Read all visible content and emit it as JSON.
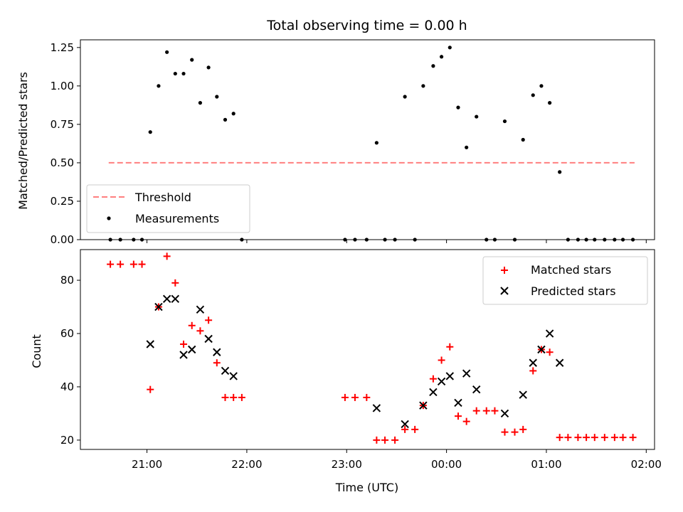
{
  "chart_data": [
    {
      "type": "scatter",
      "title": "Total observing time = 0.00 h",
      "xlabel": "",
      "ylabel": "Matched/Predicted stars",
      "xlim": [
        "20:20",
        "02:05"
      ],
      "ylim": [
        0,
        1.3
      ],
      "yticks": [
        "0.00",
        "0.25",
        "0.50",
        "0.75",
        "1.00",
        "1.25"
      ],
      "legend_position": "lower-left",
      "threshold": {
        "name": "Threshold",
        "value": 0.5,
        "x": [
          "20:37",
          "01:53"
        ],
        "color": "#ff7f7f",
        "style": "dashed"
      },
      "series": [
        {
          "name": "Measurements",
          "color": "#000000",
          "marker": "dot",
          "x": [
            "20:38",
            "20:44",
            "20:52",
            "20:57",
            "21:02",
            "21:07",
            "21:12",
            "21:17",
            "21:22",
            "21:27",
            "21:32",
            "21:37",
            "21:42",
            "21:47",
            "21:52",
            "21:57",
            "22:59",
            "23:05",
            "23:12",
            "23:18",
            "23:23",
            "23:29",
            "23:35",
            "23:41",
            "23:46",
            "23:52",
            "23:57",
            "00:02",
            "00:07",
            "00:12",
            "00:18",
            "00:24",
            "00:29",
            "00:35",
            "00:41",
            "00:46",
            "00:52",
            "00:57",
            "01:02",
            "01:08",
            "01:13",
            "01:19",
            "01:24",
            "01:29",
            "01:35",
            "01:41",
            "01:46",
            "01:52"
          ],
          "y": [
            0,
            0,
            0,
            0,
            0.7,
            1.0,
            1.22,
            1.08,
            1.08,
            1.17,
            0.89,
            1.12,
            0.93,
            0.78,
            0.82,
            0,
            0,
            0,
            0,
            0.63,
            0,
            0,
            0.93,
            0,
            1.0,
            1.13,
            1.19,
            1.25,
            0.86,
            0.6,
            0.8,
            0,
            0,
            0.77,
            0,
            0.65,
            0.94,
            1.0,
            0.89,
            0.44,
            0,
            0,
            0,
            0,
            0,
            0,
            0,
            0
          ]
        }
      ]
    },
    {
      "type": "scatter",
      "title": "",
      "xlabel": "Time (UTC)",
      "ylabel": "Count",
      "xlim": [
        "20:20",
        "02:05"
      ],
      "ylim": [
        16.5,
        91.5
      ],
      "yticks": [
        "20",
        "40",
        "60",
        "80"
      ],
      "xticks": [
        "21:00",
        "22:00",
        "23:00",
        "00:00",
        "01:00",
        "02:00"
      ],
      "legend_position": "upper-right",
      "series": [
        {
          "name": "Matched stars",
          "color": "#ff0000",
          "marker": "plus",
          "x": [
            "20:38",
            "20:44",
            "20:52",
            "20:57",
            "21:02",
            "21:07",
            "21:12",
            "21:17",
            "21:22",
            "21:27",
            "21:32",
            "21:37",
            "21:42",
            "21:47",
            "21:52",
            "21:57",
            "22:59",
            "23:05",
            "23:12",
            "23:18",
            "23:23",
            "23:29",
            "23:35",
            "23:41",
            "23:46",
            "23:52",
            "23:57",
            "00:02",
            "00:07",
            "00:12",
            "00:18",
            "00:24",
            "00:29",
            "00:35",
            "00:41",
            "00:46",
            "00:52",
            "00:57",
            "01:02",
            "01:08",
            "01:13",
            "01:19",
            "01:24",
            "01:29",
            "01:35",
            "01:41",
            "01:46",
            "01:52"
          ],
          "y": [
            86,
            86,
            86,
            86,
            39,
            70,
            89,
            79,
            56,
            63,
            61,
            65,
            49,
            36,
            36,
            36,
            36,
            36,
            36,
            20,
            20,
            20,
            24,
            24,
            33,
            43,
            50,
            55,
            29,
            27,
            31,
            31,
            31,
            23,
            23,
            24,
            46,
            54,
            53,
            21,
            21,
            21,
            21,
            21,
            21,
            21,
            21,
            21
          ]
        },
        {
          "name": "Predicted stars",
          "color": "#000000",
          "marker": "x",
          "x": [
            "21:02",
            "21:07",
            "21:12",
            "21:17",
            "21:22",
            "21:27",
            "21:32",
            "21:37",
            "21:42",
            "21:47",
            "21:52",
            "23:18",
            "23:35",
            "23:46",
            "23:52",
            "23:57",
            "00:02",
            "00:07",
            "00:12",
            "00:18",
            "00:35",
            "00:46",
            "00:52",
            "00:57",
            "01:02",
            "01:08"
          ],
          "y": [
            56,
            70,
            73,
            73,
            52,
            54,
            69,
            58,
            53,
            46,
            44,
            32,
            26,
            33,
            38,
            42,
            44,
            34,
            45,
            39,
            30,
            37,
            49,
            54,
            60,
            49
          ]
        }
      ]
    }
  ]
}
